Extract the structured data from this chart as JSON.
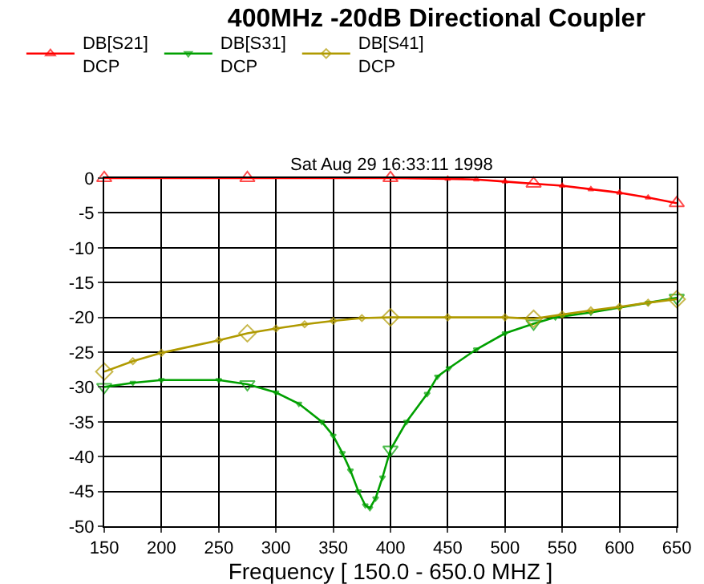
{
  "chart_data": {
    "type": "line",
    "title": "400MHz -20dB Directional Coupler",
    "xlabel": "Frequency [ 150.0 - 650.0 MHZ ]",
    "annotations": [
      "Sat Aug 29 16:33:11 1998"
    ],
    "series": [
      {
        "name": "DB[S21]\nDCP",
        "color": "#ff0000",
        "marker": "triangle",
        "x": [
          150,
          275,
          400,
          450,
          475,
          500,
          525,
          550,
          575,
          600,
          625,
          650
        ],
        "values": [
          0,
          0,
          0,
          -0.1,
          -0.2,
          -0.5,
          -0.8,
          -1.1,
          -1.6,
          -2.1,
          -2.8,
          -3.6
        ]
      },
      {
        "name": "DB[S31]\nDCP",
        "color": "#00a000",
        "marker": "triangle-down",
        "x": [
          150,
          175,
          200,
          250,
          275,
          300,
          320,
          340,
          350,
          358,
          365,
          372,
          378,
          382,
          387,
          393,
          400,
          414,
          432,
          441,
          451,
          475,
          500,
          525,
          544,
          575,
          600,
          625,
          650
        ],
        "values": [
          -30,
          -29.4,
          -29,
          -29,
          -29.6,
          -30.8,
          -32.4,
          -35,
          -37,
          -39.5,
          -42,
          -45,
          -47,
          -47.4,
          -46,
          -43,
          -39,
          -35,
          -31,
          -28.5,
          -27.3,
          -24.6,
          -22.3,
          -20.9,
          -20,
          -19.3,
          -18.6,
          -17.9,
          -17.2
        ]
      },
      {
        "name": "DB[S41]\nDCP",
        "color": "#b09a00",
        "marker": "diamond",
        "x": [
          150,
          175,
          200,
          250,
          275,
          300,
          325,
          350,
          375,
          400,
          450,
          500,
          525,
          550,
          575,
          600,
          625,
          650
        ],
        "values": [
          -27.8,
          -26.3,
          -25.1,
          -23.3,
          -22.3,
          -21.6,
          -21,
          -20.5,
          -20.1,
          -20,
          -20,
          -20,
          -20.2,
          -19.6,
          -19,
          -18.5,
          -17.9,
          -17.4
        ]
      }
    ],
    "xlim": [
      150,
      650
    ],
    "xticks": [
      150,
      200,
      250,
      300,
      350,
      400,
      450,
      500,
      550,
      600,
      650
    ],
    "ylim": [
      -50,
      0
    ],
    "yticks": [
      -50,
      -45,
      -40,
      -35,
      -30,
      -25,
      -20,
      -15,
      -10,
      -5,
      0
    ],
    "grid": true,
    "legend": "top left",
    "line_style": "solid"
  }
}
